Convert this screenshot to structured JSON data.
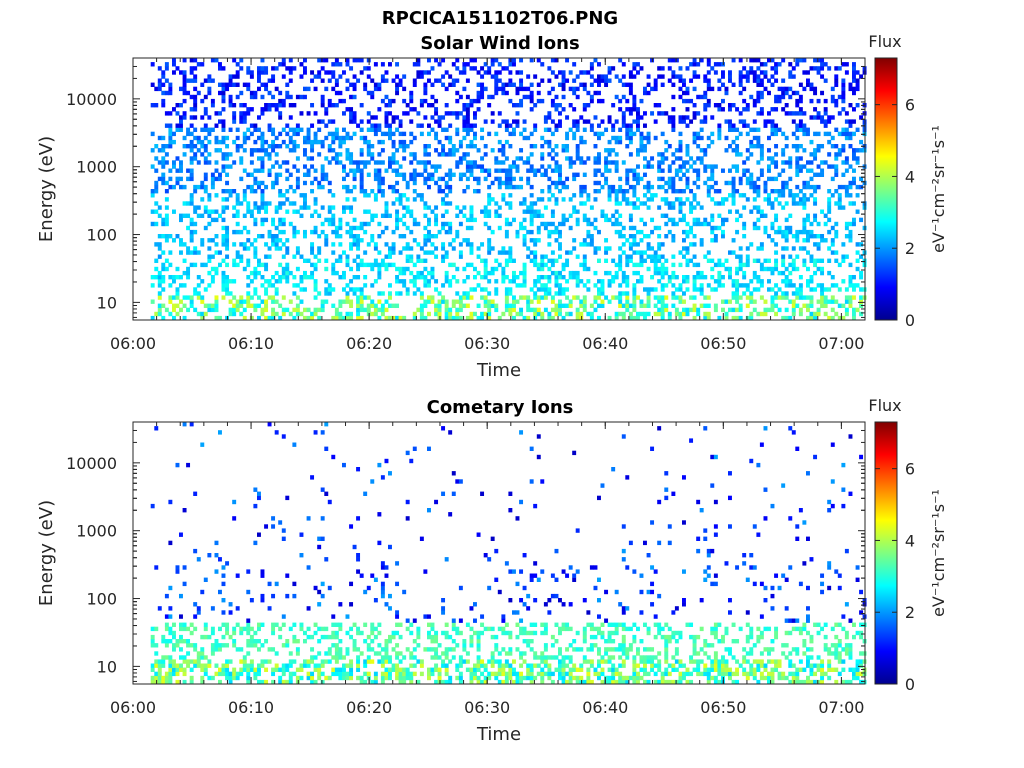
{
  "figure_title": "RPCICA151102T06.PNG",
  "chart_data": [
    {
      "type": "heatmap",
      "title": "Solar Wind Ions",
      "xlabel": "Time",
      "ylabel": "Energy (eV)",
      "x_range": [
        "06:00",
        "07:02"
      ],
      "x_ticks": [
        "06:00",
        "06:10",
        "06:20",
        "06:30",
        "06:40",
        "06:50",
        "07:00"
      ],
      "y_scale": "log",
      "y_range": [
        5.5,
        40000
      ],
      "y_ticks": [
        "10",
        "100",
        "1000",
        "10000"
      ],
      "z_range": [
        0,
        7.3
      ],
      "colorbar_title": "Flux",
      "colorbar_unit": "eV⁻¹cm⁻²sr⁻¹s⁻¹",
      "colorbar_ticks": [
        "0",
        "2",
        "4",
        "6"
      ],
      "colormap": "jet",
      "data_start": "06:01.5",
      "peak_flux_at_low_energy": 4.3,
      "bursts_minutes": [
        3.5,
        6,
        9.5,
        13,
        16.5,
        18.8,
        22.5,
        25.5,
        29,
        31.1,
        35.5,
        38.5,
        41.5,
        44.9,
        48.5,
        51,
        54.5,
        58,
        61.2
      ]
    },
    {
      "type": "heatmap",
      "title": "Cometary Ions",
      "xlabel": "Time",
      "ylabel": "Energy (eV)",
      "x_range": [
        "06:00",
        "07:02"
      ],
      "x_ticks": [
        "06:00",
        "06:10",
        "06:20",
        "06:30",
        "06:40",
        "06:50",
        "07:00"
      ],
      "y_scale": "log",
      "y_range": [
        5.5,
        40000
      ],
      "y_ticks": [
        "10",
        "100",
        "1000",
        "10000"
      ],
      "z_range": [
        0,
        7.3
      ],
      "colorbar_title": "Flux",
      "colorbar_unit": "eV⁻¹cm⁻²sr⁻¹s⁻¹",
      "colorbar_ticks": [
        "0",
        "2",
        "4",
        "6"
      ],
      "colormap": "jet",
      "data_start": "06:01.5",
      "peak_flux_at_low_energy": 6.7,
      "bursts_minutes": [
        3.5,
        6.3,
        9.8,
        12.8,
        16.2,
        18.8,
        22.5,
        25.6,
        28.8,
        31.2,
        35.5,
        38.5,
        41.6,
        44.8,
        48.6,
        51.2,
        54.6,
        57.8,
        61.2
      ]
    }
  ]
}
